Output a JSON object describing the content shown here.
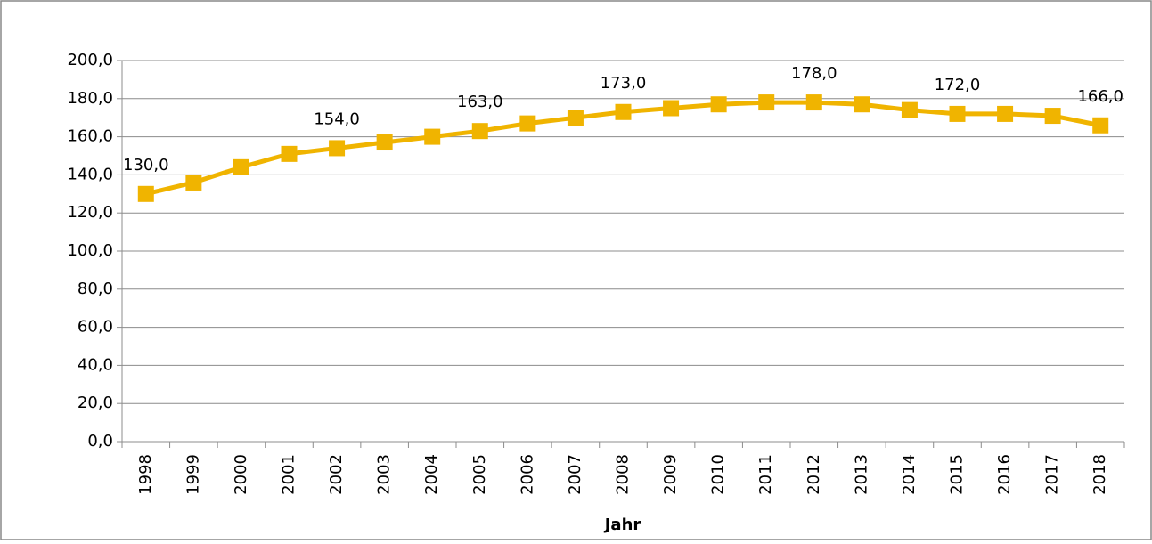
{
  "chart_data": {
    "type": "line",
    "x_label": "Jahr",
    "categories": [
      "1998",
      "1999",
      "2000",
      "2001",
      "2002",
      "2003",
      "2004",
      "2005",
      "2006",
      "2007",
      "2008",
      "2009",
      "2010",
      "2011",
      "2012",
      "2013",
      "2014",
      "2015",
      "2016",
      "2017",
      "2018"
    ],
    "series": [
      {
        "color": "#f0b400",
        "values": [
          130,
          136,
          144,
          151,
          154,
          157,
          160,
          163,
          167,
          170,
          173,
          175,
          177,
          178,
          178,
          177,
          174,
          172,
          172,
          171,
          166
        ],
        "value_labels": [
          "130,0",
          null,
          null,
          null,
          "154,0",
          null,
          null,
          "163,0",
          null,
          null,
          "173,0",
          null,
          null,
          null,
          "178,0",
          null,
          null,
          "172,0",
          null,
          null,
          "166,0"
        ]
      }
    ],
    "ylim": [
      0,
      200
    ],
    "yticks": [
      {
        "value": 0,
        "label": "0,0"
      },
      {
        "value": 20,
        "label": "20,0"
      },
      {
        "value": 40,
        "label": "40,0"
      },
      {
        "value": 60,
        "label": "60,0"
      },
      {
        "value": 80,
        "label": "80,0"
      },
      {
        "value": 100,
        "label": "100,0"
      },
      {
        "value": 120,
        "label": "120,0"
      },
      {
        "value": 140,
        "label": "140,0"
      },
      {
        "value": 160,
        "label": "160,0"
      },
      {
        "value": 180,
        "label": "180,0"
      },
      {
        "value": 200,
        "label": "200,0"
      }
    ],
    "grid": true
  }
}
